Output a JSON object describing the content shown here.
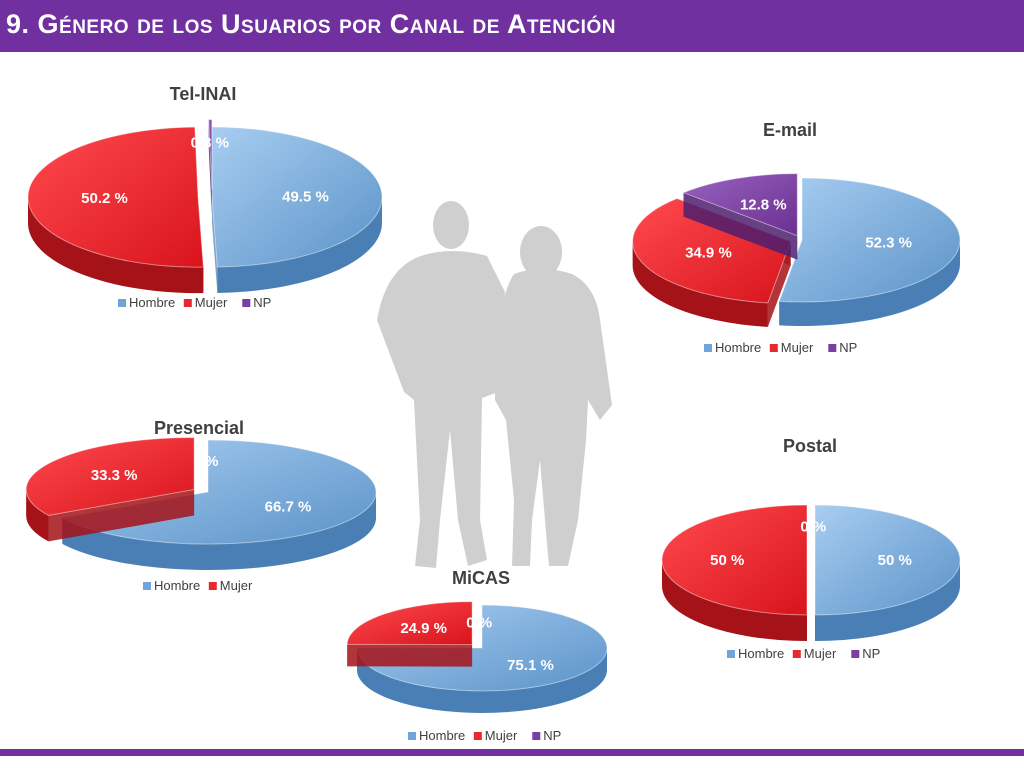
{
  "header": {
    "title": "9. Género de los Usuarios por Canal de Atención"
  },
  "colors": {
    "Hombre": "#6ea6d9",
    "Mujer": "#e8272e",
    "NP": "#7b3fa0",
    "header": "#7030a0",
    "silhouette": "#cfcfcf"
  },
  "chart_data": [
    {
      "type": "pie",
      "title": "Tel-INAI",
      "categories": [
        "Hombre",
        "Mujer",
        "NP"
      ],
      "values": [
        49.5,
        50.2,
        0.3
      ],
      "labels": [
        "49.5 %",
        "50.2 %",
        "0.3 %"
      ],
      "legend": [
        "Hombre",
        "Mujer",
        "NP"
      ],
      "legend_position": "bottom"
    },
    {
      "type": "pie",
      "title": "E-mail",
      "categories": [
        "Hombre",
        "Mujer",
        "NP"
      ],
      "values": [
        52.3,
        34.9,
        12.8
      ],
      "labels": [
        "52.3 %",
        "34.9 %",
        "12.8 %"
      ],
      "legend": [
        "Hombre",
        "Mujer",
        "NP"
      ],
      "legend_position": "bottom"
    },
    {
      "type": "pie",
      "title": "Presencial",
      "categories": [
        "Hombre",
        "Mujer",
        "NP"
      ],
      "values": [
        66.7,
        33.3,
        0
      ],
      "labels": [
        "66.7 %",
        "33.3 %",
        "0%"
      ],
      "legend": [
        "Hombre",
        "Mujer"
      ],
      "legend_position": "bottom"
    },
    {
      "type": "pie",
      "title": "Postal",
      "categories": [
        "Hombre",
        "Mujer",
        "NP"
      ],
      "values": [
        50,
        50,
        0
      ],
      "labels": [
        "50 %",
        "50 %",
        "0 %"
      ],
      "legend": [
        "Hombre",
        "Mujer",
        "NP"
      ],
      "legend_position": "bottom"
    },
    {
      "type": "pie",
      "title": "MiCAS",
      "categories": [
        "Hombre",
        "Mujer",
        "NP"
      ],
      "values": [
        75.1,
        24.9,
        0
      ],
      "labels": [
        "75.1 %",
        "24.9 %",
        "0 %"
      ],
      "legend": [
        "Hombre",
        "Mujer",
        "NP"
      ],
      "legend_position": "bottom"
    }
  ]
}
